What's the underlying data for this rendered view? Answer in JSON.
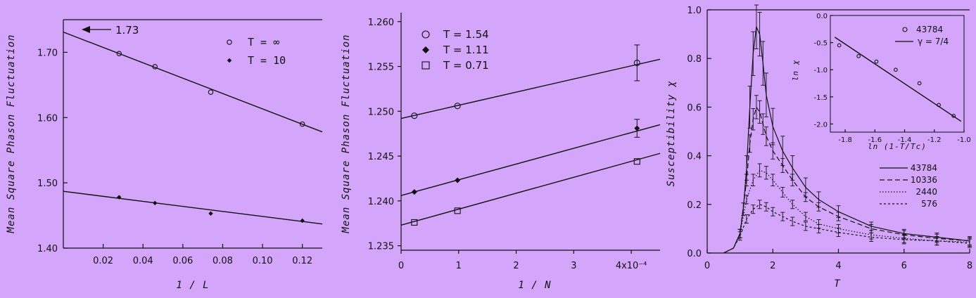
{
  "chart_data": [
    {
      "type": "scatter",
      "xlabel": "1 / L",
      "ylabel": "Mean Square Phason Fluctuation",
      "xlim": [
        0,
        0.13
      ],
      "ylim": [
        1.4,
        1.75
      ],
      "xticks": [
        "0.02",
        "0.04",
        "0.06",
        "0.08",
        "0.10",
        "0.12"
      ],
      "yticks": [
        "1.40",
        "1.50",
        "1.60",
        "1.70"
      ],
      "annotation": "1.73",
      "series": [
        {
          "name": "T = ∞",
          "marker": "open-circle",
          "x": [
            0.028,
            0.046,
            0.074,
            0.12
          ],
          "y": [
            1.698,
            1.678,
            1.639,
            1.59
          ],
          "fit": {
            "x": [
              0,
              0.13
            ],
            "y": [
              1.731,
              1.578
            ]
          }
        },
        {
          "name": "T = 10",
          "marker": "filled-diamond",
          "x": [
            0.028,
            0.046,
            0.074,
            0.12
          ],
          "y": [
            1.478,
            1.469,
            1.453,
            1.442
          ],
          "fit": {
            "x": [
              0,
              0.13
            ],
            "y": [
              1.487,
              1.437
            ]
          }
        }
      ]
    },
    {
      "type": "scatter",
      "xlabel": "1 / N",
      "ylabel": "Mean Square Phason Fluctuation",
      "xlim": [
        0,
        4.5
      ],
      "ylim": [
        1.2345,
        1.261
      ],
      "xticks": [
        "0",
        "1",
        "2",
        "3",
        "4x10⁻⁴"
      ],
      "yticks": [
        "1.235",
        "1.240",
        "1.245",
        "1.250",
        "1.255",
        "1.260"
      ],
      "series": [
        {
          "name": "T = 1.54",
          "marker": "open-circle",
          "x": [
            0.23,
            0.98,
            4.1
          ],
          "y": [
            1.2495,
            1.2506,
            1.2554
          ],
          "err": [
            0,
            0,
            0.002
          ],
          "fit": {
            "x": [
              0,
              4.5
            ],
            "y": [
              1.2492,
              1.2558
            ]
          }
        },
        {
          "name": "T = 1.11",
          "marker": "filled-diamond",
          "x": [
            0.23,
            0.98,
            4.1
          ],
          "y": [
            1.241,
            1.2423,
            1.2481
          ],
          "err": [
            0,
            0,
            0.001
          ],
          "fit": {
            "x": [
              0,
              4.5
            ],
            "y": [
              1.2406,
              1.2485
            ]
          }
        },
        {
          "name": "T = 0.71",
          "marker": "open-square",
          "x": [
            0.23,
            0.98,
            4.1
          ],
          "y": [
            1.2376,
            1.2389,
            1.2444
          ],
          "err": [
            0,
            0,
            0
          ],
          "fit": {
            "x": [
              0,
              4.5
            ],
            "y": [
              1.2373,
              1.2453
            ]
          }
        }
      ]
    },
    {
      "type": "line",
      "xlabel": "T",
      "ylabel": "Susceptibility χ",
      "xlim": [
        0,
        8
      ],
      "ylim": [
        0,
        1.0
      ],
      "xticks": [
        "0",
        "2",
        "4",
        "6",
        "8"
      ],
      "yticks": [
        "0.0",
        "0.2",
        "0.4",
        "0.6",
        "0.8",
        "1.0"
      ],
      "legend": "lower-right",
      "series": [
        {
          "name": "43784",
          "style": "solid",
          "x": [
            0.5,
            0.8,
            1.0,
            1.1,
            1.2,
            1.3,
            1.4,
            1.5,
            1.6,
            1.7,
            1.8,
            2.0,
            2.3,
            2.6,
            3.0,
            3.4,
            4.0,
            5.0,
            6.0,
            7.0,
            8.0
          ],
          "y": [
            0.0,
            0.02,
            0.08,
            0.18,
            0.35,
            0.6,
            0.82,
            0.93,
            0.9,
            0.78,
            0.65,
            0.52,
            0.42,
            0.35,
            0.27,
            0.22,
            0.17,
            0.11,
            0.08,
            0.065,
            0.05
          ]
        },
        {
          "name": "10336",
          "style": "dashed",
          "x": [
            0.5,
            0.8,
            1.0,
            1.2,
            1.3,
            1.4,
            1.5,
            1.6,
            1.7,
            1.8,
            2.0,
            2.3,
            2.6,
            3.0,
            3.4,
            4.0,
            5.0,
            6.0,
            7.0,
            8.0
          ],
          "y": [
            0.0,
            0.02,
            0.08,
            0.3,
            0.45,
            0.55,
            0.6,
            0.58,
            0.53,
            0.48,
            0.42,
            0.36,
            0.3,
            0.23,
            0.19,
            0.15,
            0.1,
            0.075,
            0.06,
            0.05
          ]
        },
        {
          "name": "2440",
          "style": "dotted",
          "x": [
            0.5,
            0.8,
            1.0,
            1.2,
            1.4,
            1.6,
            1.8,
            2.0,
            2.3,
            2.6,
            3.0,
            3.4,
            4.0,
            5.0,
            6.0,
            7.0,
            8.0
          ],
          "y": [
            0.0,
            0.02,
            0.08,
            0.22,
            0.3,
            0.34,
            0.33,
            0.3,
            0.25,
            0.2,
            0.15,
            0.12,
            0.1,
            0.075,
            0.06,
            0.05,
            0.045
          ]
        },
        {
          "name": "576",
          "style": "short-dash",
          "x": [
            0.5,
            0.8,
            1.0,
            1.2,
            1.4,
            1.6,
            1.8,
            2.0,
            2.3,
            2.6,
            3.0,
            3.4,
            4.0,
            5.0,
            6.0,
            7.0,
            8.0
          ],
          "y": [
            0.0,
            0.02,
            0.07,
            0.14,
            0.18,
            0.2,
            0.19,
            0.17,
            0.15,
            0.13,
            0.11,
            0.1,
            0.085,
            0.065,
            0.055,
            0.05,
            0.04
          ]
        }
      ],
      "inset": {
        "type": "scatter",
        "xlabel": "ln (1-T/Tc)",
        "ylabel": "ln χ",
        "xlim": [
          -1.9,
          -1.0
        ],
        "ylim": [
          -2.15,
          0.0
        ],
        "xticks": [
          "-1.8",
          "-1.6",
          "-1.4",
          "-1.2",
          "-1.0"
        ],
        "yticks": [
          "0.0",
          "-0.5",
          "-1.0",
          "-1.5",
          "-2.0"
        ],
        "series": [
          {
            "name": "43784",
            "marker": "open-circle",
            "x": [
              -1.84,
              -1.71,
              -1.59,
              -1.46,
              -1.3,
              -1.17,
              -1.07
            ],
            "y": [
              -0.55,
              -0.75,
              -0.85,
              -1.0,
              -1.25,
              -1.65,
              -1.85
            ]
          },
          {
            "name": "γ = 7/4",
            "marker": "line",
            "x": [
              -1.87,
              -1.02
            ],
            "y": [
              -0.4,
              -1.95
            ]
          }
        ]
      }
    }
  ]
}
